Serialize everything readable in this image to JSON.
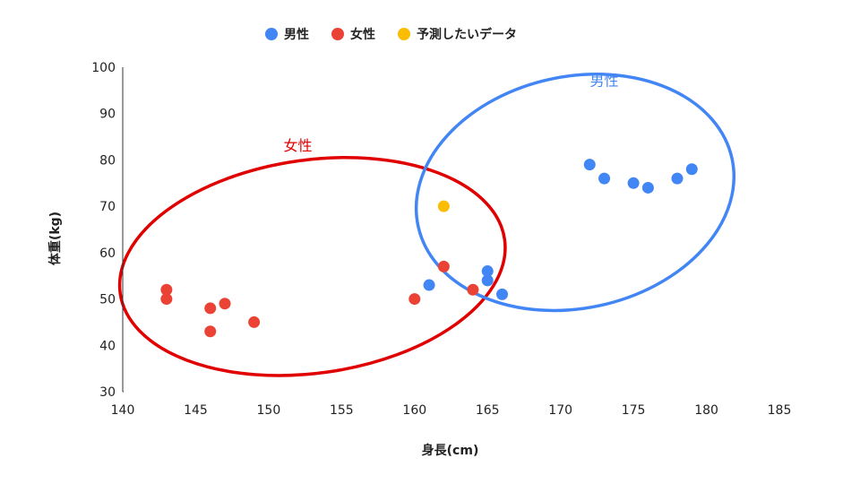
{
  "chart_data": {
    "type": "scatter",
    "xlabel": "身長(cm)",
    "ylabel": "体重(kg)",
    "xlim": [
      140,
      185
    ],
    "ylim": [
      30,
      100
    ],
    "x_ticks": [
      140,
      145,
      150,
      155,
      160,
      165,
      170,
      175,
      180,
      185
    ],
    "y_ticks": [
      30,
      40,
      50,
      60,
      70,
      80,
      90,
      100
    ],
    "grid": false,
    "legend_position": "top",
    "series": [
      {
        "name": "男性",
        "color": "#4285f4",
        "points": [
          {
            "x": 161,
            "y": 53
          },
          {
            "x": 165,
            "y": 56
          },
          {
            "x": 165,
            "y": 54
          },
          {
            "x": 166,
            "y": 51
          },
          {
            "x": 172,
            "y": 79
          },
          {
            "x": 173,
            "y": 76
          },
          {
            "x": 175,
            "y": 75
          },
          {
            "x": 176,
            "y": 74
          },
          {
            "x": 178,
            "y": 76
          },
          {
            "x": 179,
            "y": 78
          }
        ]
      },
      {
        "name": "女性",
        "color": "#ea4335",
        "points": [
          {
            "x": 143,
            "y": 52
          },
          {
            "x": 143,
            "y": 50
          },
          {
            "x": 146,
            "y": 48
          },
          {
            "x": 146,
            "y": 43
          },
          {
            "x": 147,
            "y": 49
          },
          {
            "x": 149,
            "y": 45
          },
          {
            "x": 160,
            "y": 50
          },
          {
            "x": 162,
            "y": 57
          },
          {
            "x": 164,
            "y": 52
          }
        ]
      },
      {
        "name": "予測したいデータ",
        "color": "#fbbc04",
        "points": [
          {
            "x": 162,
            "y": 70
          }
        ]
      }
    ],
    "annotations": [
      {
        "text": "女性",
        "color": "#e00000",
        "x": 152,
        "y": 82,
        "ellipse": {
          "cx": 153,
          "cy": 57,
          "rx": 13.3,
          "ry": 23,
          "stroke": "#e00000",
          "rotate": -8
        }
      },
      {
        "text": "男性",
        "color": "#4285f4",
        "x": 173,
        "y": 96,
        "ellipse": {
          "cx": 171,
          "cy": 73,
          "rx": 11,
          "ry": 25,
          "stroke": "#4285f4",
          "rotate": -12
        }
      }
    ]
  }
}
